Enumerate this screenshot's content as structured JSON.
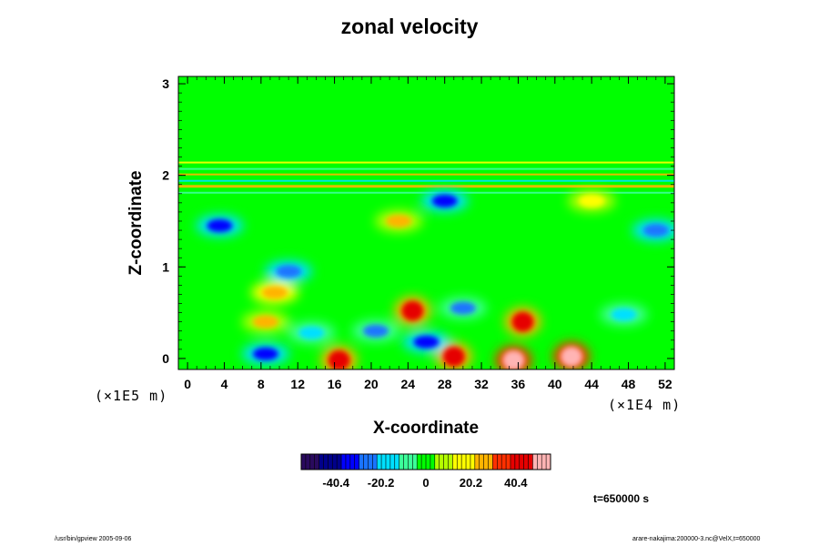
{
  "chart_data": {
    "type": "heatmap",
    "title": "zonal velocity",
    "xlabel": "X-coordinate",
    "ylabel": "Z-coordinate",
    "x_unit_label": "(×1E4 m)",
    "z_unit_label": "(×1E5 m)",
    "x_ticks": [
      "0",
      "4",
      "8",
      "12",
      "16",
      "20",
      "24",
      "28",
      "32",
      "36",
      "40",
      "44",
      "48",
      "52"
    ],
    "y_ticks": [
      "0",
      "1",
      "2",
      "3"
    ],
    "xlim": [
      -1,
      53
    ],
    "ylim": [
      -0.12,
      3.08
    ],
    "colorbar": {
      "ticks": [
        "-40.4",
        "-20.2",
        "0",
        "20.2",
        "40.4"
      ],
      "tick_values": [
        -40.4,
        -20.2,
        0,
        20.2,
        40.4
      ],
      "range": [
        -56,
        56
      ],
      "colors": [
        "#2a0a5e",
        "#00008b",
        "#0000ff",
        "#1a74ff",
        "#00e0ff",
        "#3cff9a",
        "#00ff00",
        "#b4ff00",
        "#ffff00",
        "#ffb400",
        "#ff3000",
        "#e60000",
        "#ffb4b4"
      ]
    },
    "features": [
      {
        "x": 3.5,
        "z": 1.45,
        "value": -38
      },
      {
        "x": 11,
        "z": 0.95,
        "value": -26
      },
      {
        "x": 9.5,
        "z": 0.72,
        "value": 30
      },
      {
        "x": 8.5,
        "z": 0.4,
        "value": 22
      },
      {
        "x": 24.5,
        "z": 0.52,
        "value": 44
      },
      {
        "x": 36.5,
        "z": 0.4,
        "value": 42
      },
      {
        "x": 16.5,
        "z": -0.02,
        "value": 46
      },
      {
        "x": 29,
        "z": 0.02,
        "value": 44
      },
      {
        "x": 35.5,
        "z": -0.02,
        "value": 58
      },
      {
        "x": 41.8,
        "z": 0.02,
        "value": 56
      },
      {
        "x": 8.5,
        "z": 0.05,
        "value": -38
      },
      {
        "x": 26,
        "z": 0.18,
        "value": -32
      },
      {
        "x": 30,
        "z": 0.55,
        "value": -22
      },
      {
        "x": 47.5,
        "z": 0.48,
        "value": -18
      },
      {
        "x": 51,
        "z": 1.4,
        "value": -30
      },
      {
        "x": 23,
        "z": 1.5,
        "value": 22
      },
      {
        "x": 44,
        "z": 1.72,
        "value": 20
      },
      {
        "x": 28,
        "z": 1.72,
        "value": -34
      },
      {
        "x": 20.5,
        "z": 0.3,
        "value": -22
      },
      {
        "x": 13.5,
        "z": 0.28,
        "value": -20
      }
    ],
    "grid": false,
    "time_label": "t=650000 s"
  },
  "footer": {
    "left": "/usr/bin/gpview 2005-09-06",
    "right": "arare-nakajima:200000-3.nc@VelX,t=650000"
  }
}
